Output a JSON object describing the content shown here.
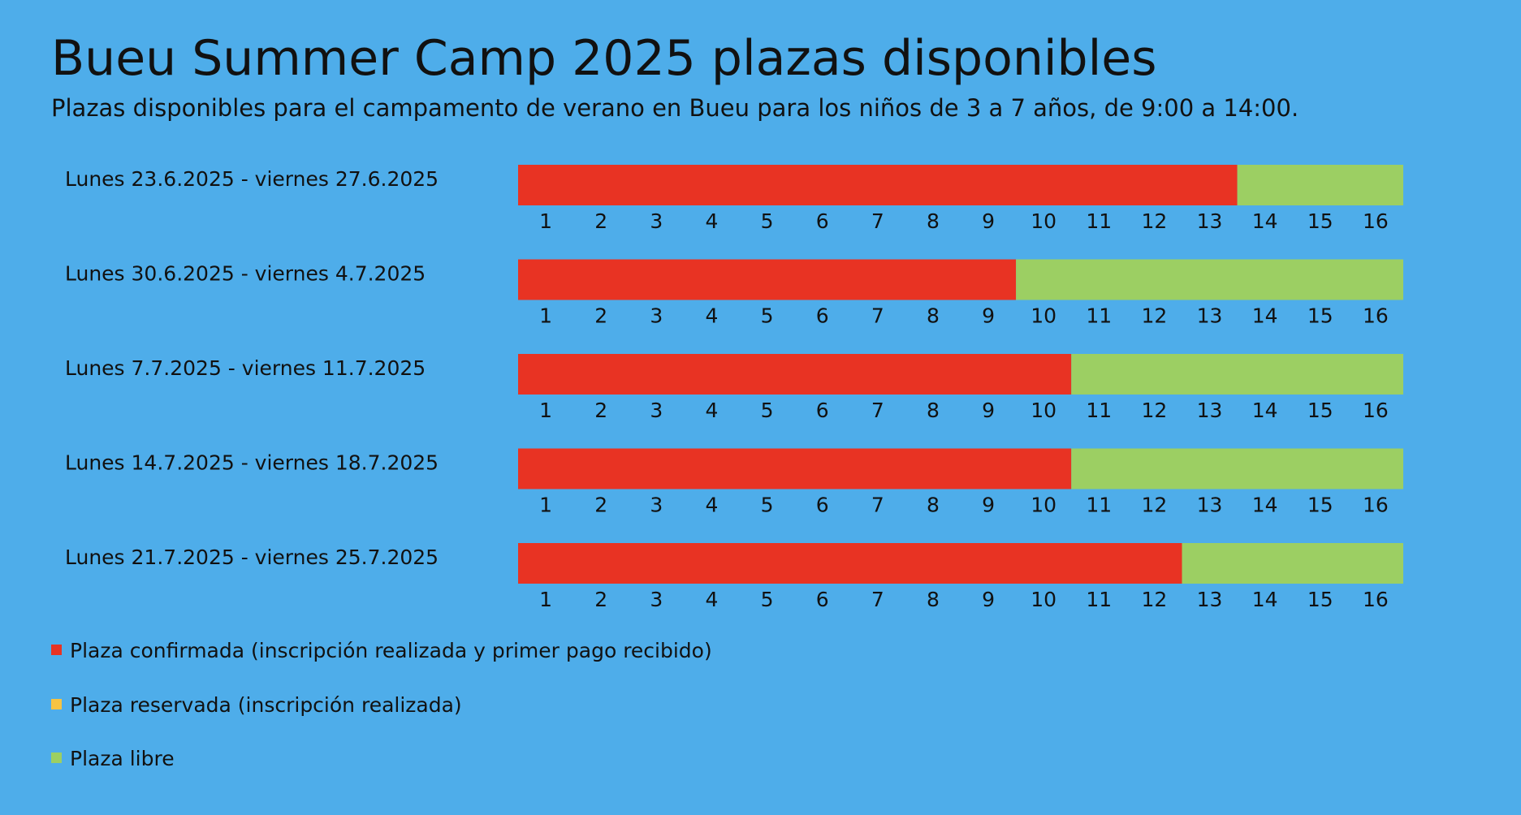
{
  "title": "Bueu Summer Camp 2025 plazas disponibles",
  "subtitle": "Plazas disponibles para el campamento de verano en Bueu para los niños de 3 a 7 años, de 9:00 a 14:00.",
  "colors": {
    "background": "#4eadea",
    "confirmed": "#e83323",
    "reserved": "#f6c342",
    "free": "#9ccf63"
  },
  "legend": {
    "confirmed": "Plaza confirmada (inscripción realizada y primer pago recibido)",
    "reserved": "Plaza reservada (inscripción realizada)",
    "free": "Plaza libre"
  },
  "chart_data": {
    "type": "bar",
    "orientation": "horizontal-stacked",
    "total_slots": 16,
    "slot_labels": [
      "1",
      "2",
      "3",
      "4",
      "5",
      "6",
      "7",
      "8",
      "9",
      "10",
      "11",
      "12",
      "13",
      "14",
      "15",
      "16"
    ],
    "categories": [
      "Lunes 23.6.2025 - viernes 27.6.2025",
      "Lunes 30.6.2025 - viernes 4.7.2025",
      "Lunes 7.7.2025 - viernes 11.7.2025",
      "Lunes 14.7.2025 - viernes 18.7.2025",
      "Lunes 21.7.2025 - viernes 25.7.2025"
    ],
    "series": [
      {
        "name": "Plaza confirmada (inscripción realizada y primer pago recibido)",
        "values": [
          13,
          9,
          10,
          10,
          12
        ]
      },
      {
        "name": "Plaza reservada (inscripción realizada)",
        "values": [
          0,
          0,
          0,
          0,
          0
        ]
      },
      {
        "name": "Plaza libre",
        "values": [
          3,
          7,
          6,
          6,
          4
        ]
      }
    ]
  }
}
